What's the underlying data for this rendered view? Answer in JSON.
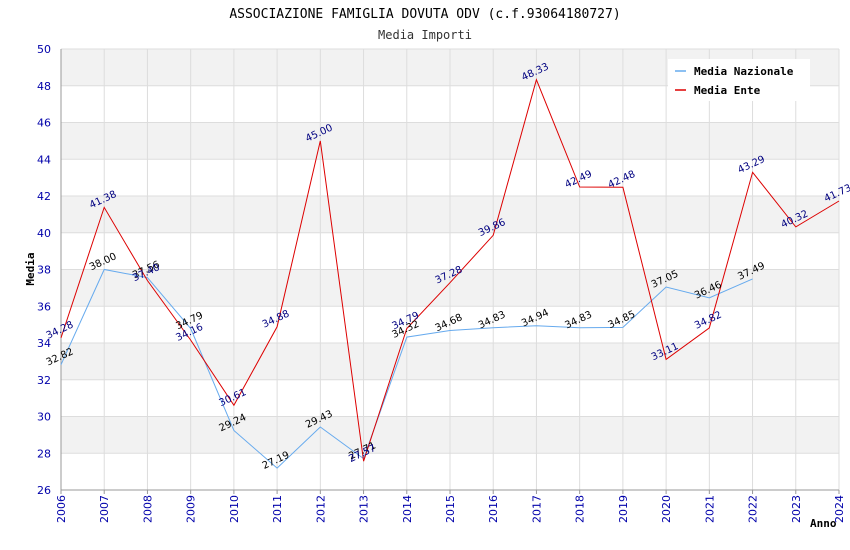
{
  "chart_data": {
    "type": "line",
    "title": "ASSOCIAZIONE FAMIGLIA DOVUTA ODV (c.f.93064180727)",
    "subtitle": "Media Importi",
    "xlabel": "Anno",
    "ylabel": "Media",
    "ylim": [
      26,
      50
    ],
    "yticks": [
      26,
      28,
      30,
      32,
      34,
      36,
      38,
      40,
      42,
      44,
      46,
      48,
      50
    ],
    "x": [
      2006,
      2007,
      2008,
      2009,
      2010,
      2011,
      2012,
      2013,
      2014,
      2015,
      2016,
      2017,
      2018,
      2019,
      2020,
      2021,
      2022,
      2023,
      2024
    ],
    "grid": true,
    "legend_position": "top-right",
    "series": [
      {
        "name": "Media Nazionale",
        "color": "#66aaee",
        "label_color": "#000000",
        "x": [
          2006,
          2007,
          2008,
          2009,
          2010,
          2011,
          2012,
          2013,
          2014,
          2015,
          2016,
          2017,
          2018,
          2019,
          2020,
          2021,
          2022
        ],
        "values": [
          32.82,
          38.0,
          37.56,
          34.79,
          29.24,
          27.19,
          29.43,
          27.71,
          34.32,
          34.68,
          34.83,
          34.94,
          34.83,
          34.85,
          37.05,
          36.46,
          37.49
        ],
        "labels": [
          "32.82",
          "38.00",
          "37.56",
          "34.79",
          "29.24",
          "27.19",
          "29.43",
          "27.71",
          "34.32",
          "34.68",
          "34.83",
          "34.94",
          "34.83",
          "34.85",
          "37.05",
          "36.46",
          "37.49"
        ]
      },
      {
        "name": "Media Ente",
        "color": "#dd0000",
        "label_color": "#000080",
        "x": [
          2006,
          2007,
          2008,
          2009,
          2010,
          2011,
          2012,
          2013,
          2014,
          2015,
          2016,
          2017,
          2018,
          2019,
          2020,
          2021,
          2022,
          2023,
          2024
        ],
        "values": [
          34.28,
          41.38,
          37.4,
          34.16,
          30.61,
          34.88,
          45.0,
          27.57,
          34.79,
          37.28,
          39.86,
          48.33,
          42.49,
          42.48,
          33.11,
          34.82,
          43.29,
          40.32,
          41.73
        ],
        "labels": [
          "34.28",
          "41.38",
          "37.40",
          "34.16",
          "30.61",
          "34.88",
          "45.00",
          "27.57",
          "34.79",
          "37.28",
          "39.86",
          "48.33",
          "42.49",
          "42.48",
          "33.11",
          "34.82",
          "43.29",
          "40.32",
          "41.73"
        ]
      }
    ]
  }
}
